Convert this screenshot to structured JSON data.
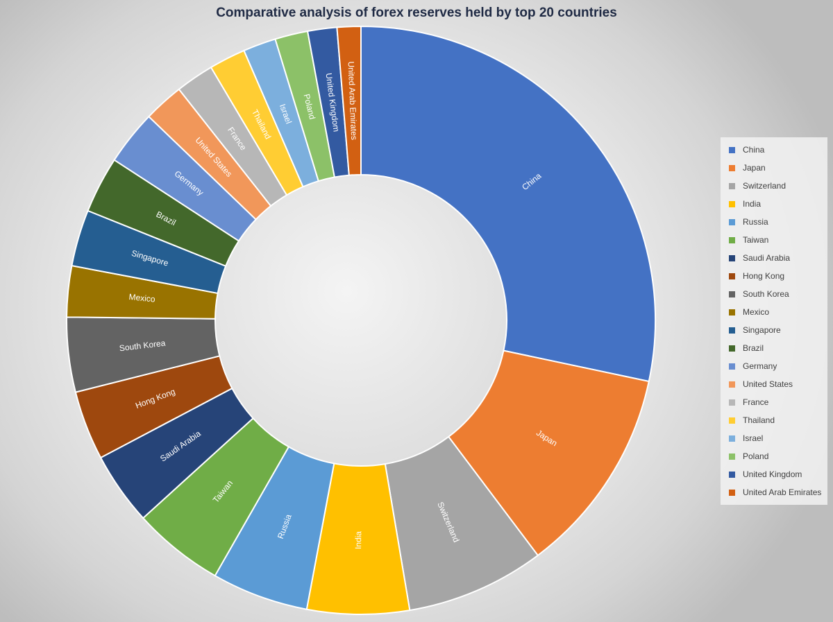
{
  "chart_data": {
    "type": "pie",
    "subtype": "donut",
    "title": "Comparative analysis of forex reserves held by top 20 countries",
    "unit": "approximate share of total (%)",
    "legend_position": "right",
    "data_labels": "category names",
    "categories": [
      "China",
      "Japan",
      "Switzerland",
      "India",
      "Russia",
      "Taiwan",
      "Saudi Arabia",
      "Hong Kong",
      "South Korea",
      "Mexico",
      "Singapore",
      "Brazil",
      "Germany",
      "United States",
      "France",
      "Thailand",
      "Israel",
      "Poland",
      "United Kingdom",
      "United Arab Emirates"
    ],
    "values": [
      28.3,
      11.4,
      7.6,
      5.6,
      5.3,
      5.0,
      4.0,
      3.8,
      4.1,
      2.8,
      3.1,
      3.1,
      3.0,
      2.2,
      2.1,
      2.0,
      1.8,
      1.8,
      1.6,
      1.3
    ],
    "colors": [
      "#4472C4",
      "#ED7D31",
      "#A5A5A5",
      "#FFC000",
      "#5B9BD5",
      "#70AD47",
      "#264478",
      "#9E480E",
      "#636363",
      "#997300",
      "#255E91",
      "#43682B",
      "#698ED0",
      "#F1975A",
      "#B7B7B7",
      "#FFCD33",
      "#7CAFDD",
      "#8CC168",
      "#335AA1",
      "#D26012"
    ]
  }
}
